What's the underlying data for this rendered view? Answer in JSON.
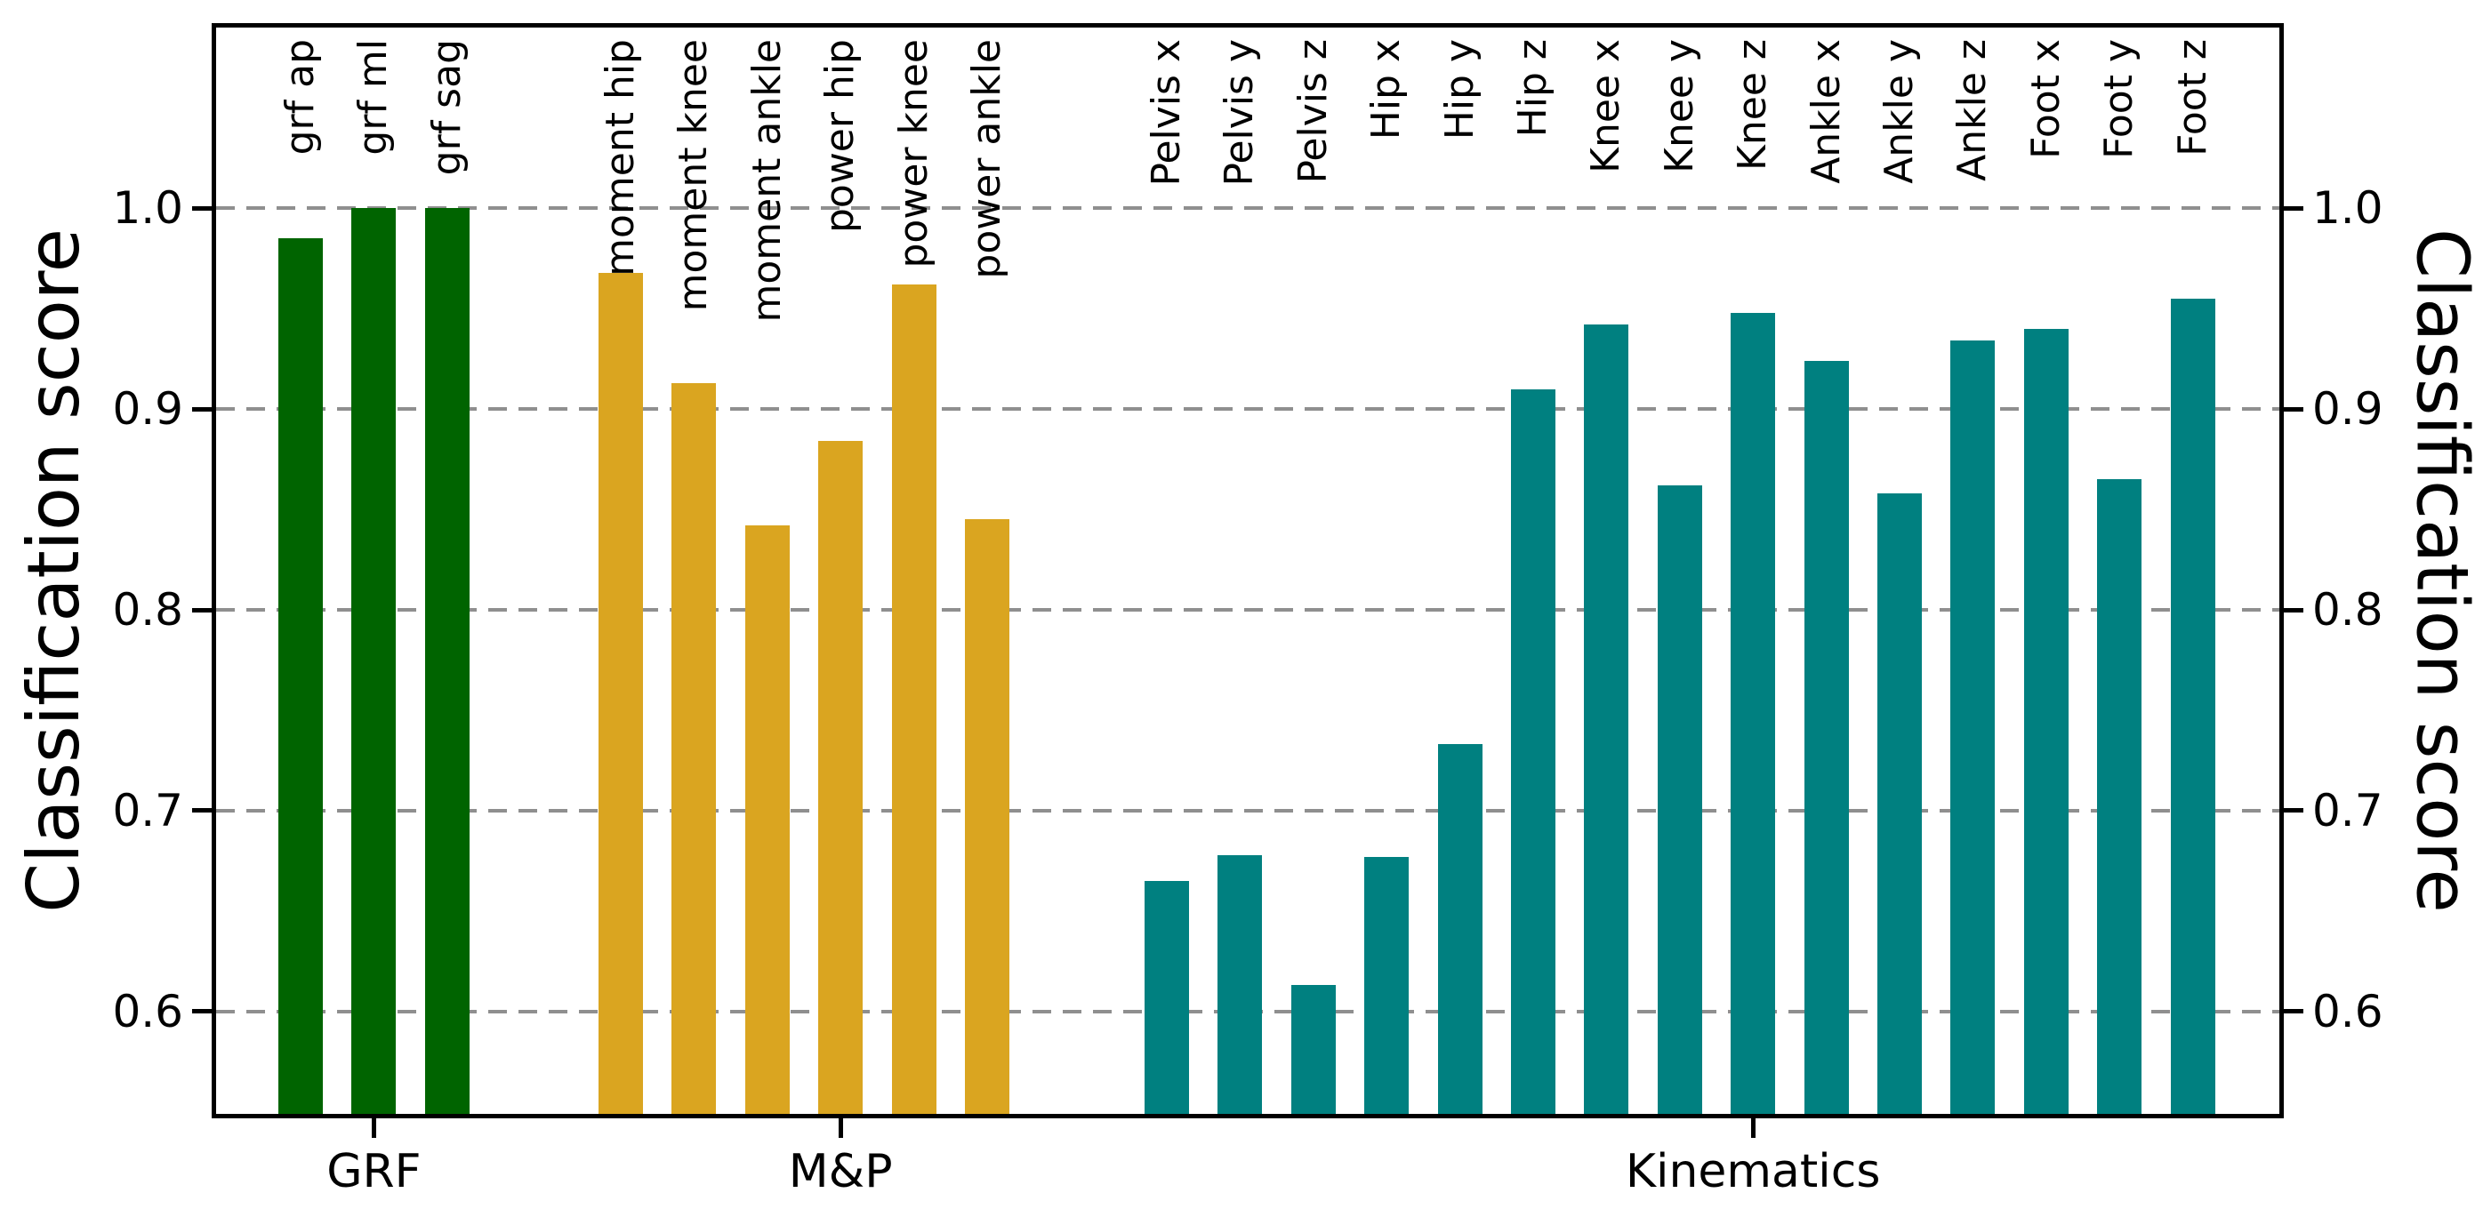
{
  "chart_data": {
    "type": "bar",
    "title": "",
    "ylabel_left": "Classification score",
    "ylabel_right": "Classification score",
    "ylim": [
      0.549,
      1.09
    ],
    "yticks": [
      1.0,
      0.9,
      0.8,
      0.7,
      0.6
    ],
    "ytick_labels": [
      "1.0",
      "0.9",
      "0.8",
      "0.7",
      "0.6"
    ],
    "grid": "horizontal dashed gridlines at each y tick, drawn behind bars",
    "legend": "none",
    "groups": [
      {
        "label": "GRF",
        "color": "#006400",
        "bars": [
          {
            "label": "grf ap",
            "value": 0.985
          },
          {
            "label": "grf ml",
            "value": 1.0
          },
          {
            "label": "grf sag",
            "value": 1.0
          }
        ]
      },
      {
        "label": "M&P",
        "color": "#DAA520",
        "bars": [
          {
            "label": "moment hip",
            "value": 0.968
          },
          {
            "label": "moment knee",
            "value": 0.913
          },
          {
            "label": "moment ankle",
            "value": 0.842
          },
          {
            "label": "power hip",
            "value": 0.884
          },
          {
            "label": "power knee",
            "value": 0.962
          },
          {
            "label": "power ankle",
            "value": 0.845
          }
        ]
      },
      {
        "label": "Kinematics",
        "color": "#008080",
        "bars": [
          {
            "label": "Pelvis x",
            "value": 0.665
          },
          {
            "label": "Pelvis y",
            "value": 0.678
          },
          {
            "label": "Pelvis z",
            "value": 0.613
          },
          {
            "label": "Hip x",
            "value": 0.677
          },
          {
            "label": "Hip y",
            "value": 0.733
          },
          {
            "label": "Hip z",
            "value": 0.91
          },
          {
            "label": "Knee x",
            "value": 0.942
          },
          {
            "label": "Knee y",
            "value": 0.862
          },
          {
            "label": "Knee z",
            "value": 0.948
          },
          {
            "label": "Ankle x",
            "value": 0.924
          },
          {
            "label": "Ankle y",
            "value": 0.858
          },
          {
            "label": "Ankle z",
            "value": 0.934
          },
          {
            "label": "Foot x",
            "value": 0.94
          },
          {
            "label": "Foot y",
            "value": 0.865
          },
          {
            "label": "Foot z",
            "value": 0.955
          }
        ]
      }
    ]
  }
}
